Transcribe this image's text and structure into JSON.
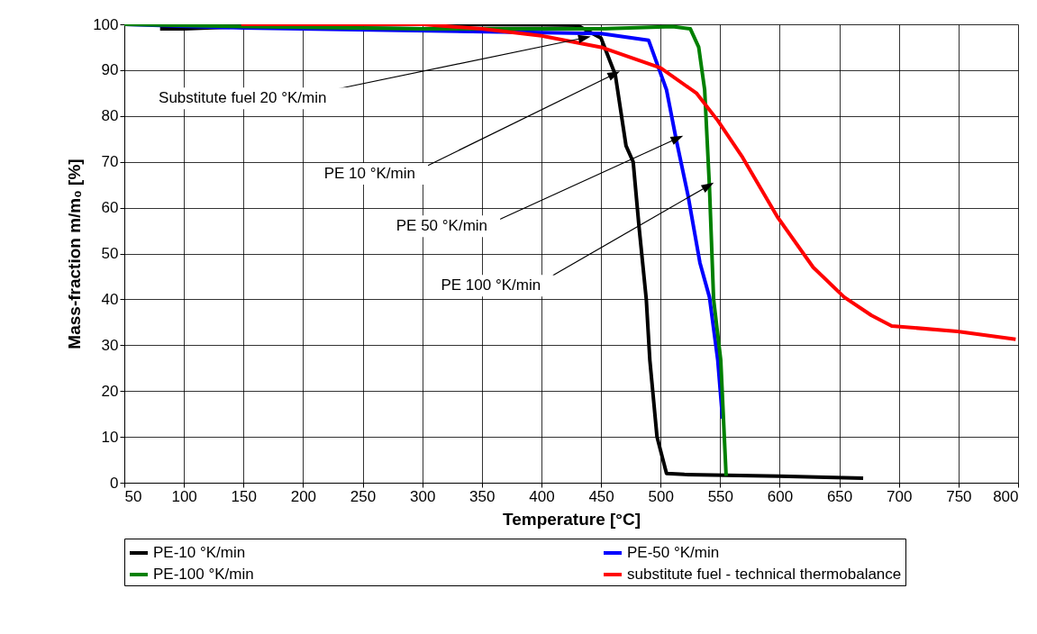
{
  "chart_data": {
    "type": "line",
    "xlabel": "Temperature [°C]",
    "ylabel": "Mass-fraction m/m₀ [%]",
    "xlim": [
      50,
      800
    ],
    "xticks": [
      50,
      100,
      150,
      200,
      250,
      300,
      350,
      400,
      450,
      500,
      550,
      600,
      650,
      700,
      750,
      800
    ],
    "ylim": [
      0,
      100
    ],
    "yticks": [
      0,
      10,
      20,
      30,
      40,
      50,
      60,
      70,
      80,
      90,
      100
    ],
    "grid": true,
    "legend": "bottom",
    "marker": "none",
    "line_style": "solid",
    "series": [
      {
        "name": "PE-10 °K/min",
        "color": "#000000",
        "x": [
          80,
          100,
          150,
          200,
          300,
          400,
          430,
          450,
          462,
          471,
          477,
          482,
          488,
          491,
          497,
          505,
          520,
          600,
          670
        ],
        "values": [
          99,
          99,
          99.5,
          99.7,
          100,
          99.9,
          99.8,
          97,
          89,
          73.5,
          70,
          55.6,
          40,
          26.7,
          10,
          2,
          1.8,
          1.4,
          1
        ]
      },
      {
        "name": "PE-50 °K/min",
        "color": "#0000ff",
        "x": [
          50,
          150,
          450,
          490,
          505,
          513,
          523,
          533,
          541,
          548,
          552
        ],
        "values": [
          100,
          99.2,
          98,
          96.5,
          85.7,
          75,
          62.7,
          48,
          40.5,
          26.7,
          14
        ]
      },
      {
        "name": "PE-100 °K/min",
        "color": "#008000",
        "x": [
          50,
          150,
          300,
          450,
          510,
          525,
          532,
          537,
          541,
          544.5,
          550.5,
          555
        ],
        "values": [
          100,
          99.5,
          99,
          99,
          99.5,
          99,
          95,
          85.7,
          64.6,
          40,
          26.7,
          1.5
        ]
      },
      {
        "name": "substitute fuel - technical thermobalance",
        "color": "#ff0000",
        "x": [
          148,
          200,
          300,
          350,
          400,
          450,
          500,
          530,
          548,
          568,
          598,
          628,
          654,
          677,
          694,
          749,
          798
        ],
        "values": [
          100,
          100,
          100,
          99,
          97.5,
          95,
          90.5,
          85,
          79,
          71.3,
          58,
          47,
          40.5,
          36.5,
          34.2,
          33,
          31.3
        ]
      }
    ],
    "annotations": [
      {
        "text": "Substitute fuel 20 °K/min",
        "x": 435,
        "y": 97
      },
      {
        "text": "PE 10 °K/min",
        "x": 460,
        "y": 89
      },
      {
        "text": "PE 50 °K/min",
        "x": 513,
        "y": 75
      },
      {
        "text": "PE 100 °K/min",
        "x": 539,
        "y": 64.6
      }
    ]
  }
}
